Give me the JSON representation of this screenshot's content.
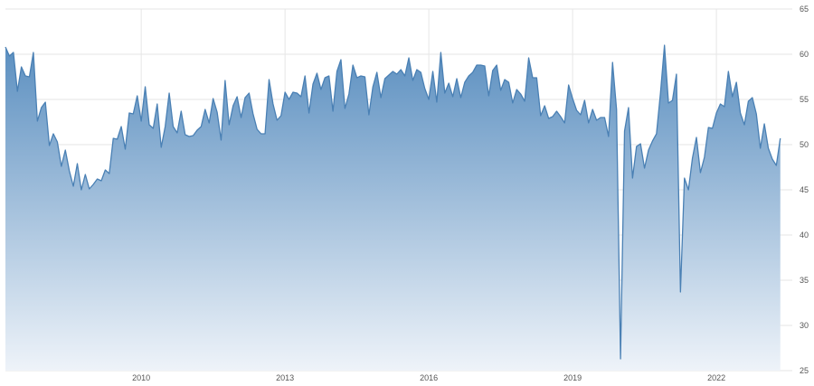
{
  "chart_data": {
    "type": "area",
    "title": "",
    "xlabel": "",
    "ylabel": "",
    "x_start": "2007-03",
    "x_frequency": "monthly",
    "x_ticks": [
      "2010",
      "2013",
      "2016",
      "2019",
      "2022"
    ],
    "y_ticks": [
      25,
      30,
      35,
      40,
      45,
      50,
      55,
      60,
      65
    ],
    "xlim": [
      "2007-03",
      "2023-08"
    ],
    "ylim": [
      25,
      65
    ],
    "grid": true,
    "legend": "none",
    "colors": {
      "line": "#4a80b4",
      "fill_top": "#5b8fc0",
      "fill_bottom": "#eef3f9",
      "grid": "#e6e6e6"
    },
    "series": [
      {
        "values": [
          60.8,
          59.8,
          60.2,
          55.9,
          58.6,
          57.6,
          57.5,
          60.2,
          52.6,
          54.1,
          54.7,
          49.9,
          51.2,
          50.3,
          47.6,
          49.4,
          47.1,
          45.4,
          47.9,
          45.0,
          46.7,
          45.1,
          45.6,
          46.2,
          46.0,
          47.2,
          46.8,
          50.7,
          50.6,
          52.0,
          49.5,
          53.5,
          53.4,
          55.4,
          52.6,
          56.4,
          52.2,
          51.8,
          54.5,
          49.7,
          52.0,
          55.7,
          52.0,
          51.3,
          53.7,
          51.1,
          50.9,
          51.0,
          51.6,
          52.0,
          53.9,
          52.4,
          55.1,
          53.6,
          50.5,
          57.1,
          52.2,
          54.3,
          55.3,
          53.0,
          55.2,
          55.7,
          53.4,
          51.7,
          51.2,
          51.2,
          57.2,
          54.5,
          52.7,
          53.2,
          55.8,
          55.0,
          55.8,
          55.7,
          55.3,
          57.6,
          53.5,
          56.7,
          57.9,
          56.1,
          57.4,
          57.6,
          53.7,
          58.1,
          59.4,
          54.0,
          55.6,
          58.8,
          57.4,
          57.6,
          57.5,
          53.3,
          56.4,
          58.0,
          55.2,
          57.3,
          57.7,
          58.1,
          57.8,
          58.3,
          57.6,
          59.6,
          57.1,
          58.3,
          58.0,
          56.2,
          55.0,
          58.1,
          54.7,
          60.2,
          55.7,
          56.8,
          55.3,
          57.3,
          55.2,
          56.9,
          57.6,
          58.0,
          58.8,
          58.8,
          58.7,
          55.4,
          58.2,
          58.8,
          56.0,
          57.2,
          56.9,
          54.6,
          56.1,
          55.6,
          54.8,
          59.6,
          57.4,
          57.4,
          53.2,
          54.3,
          52.9,
          53.1,
          53.7,
          53.1,
          52.4,
          56.6,
          55.1,
          53.8,
          53.3,
          54.9,
          52.4,
          53.9,
          52.7,
          53.0,
          53.0,
          50.9,
          59.1,
          53.9,
          26.3,
          51.5,
          54.1,
          46.3,
          49.8,
          50.1,
          47.4,
          49.4,
          50.4,
          51.2,
          55.7,
          61.0,
          54.6,
          54.9,
          57.8,
          33.7,
          46.3,
          45.0,
          48.5,
          50.8,
          46.9,
          48.6,
          51.9,
          51.8,
          53.5,
          54.5,
          54.2,
          58.1,
          55.3,
          56.9,
          53.5,
          52.2,
          54.8,
          55.2,
          53.4,
          49.6,
          52.3,
          49.6,
          48.4,
          47.7,
          50.7
        ]
      }
    ]
  }
}
